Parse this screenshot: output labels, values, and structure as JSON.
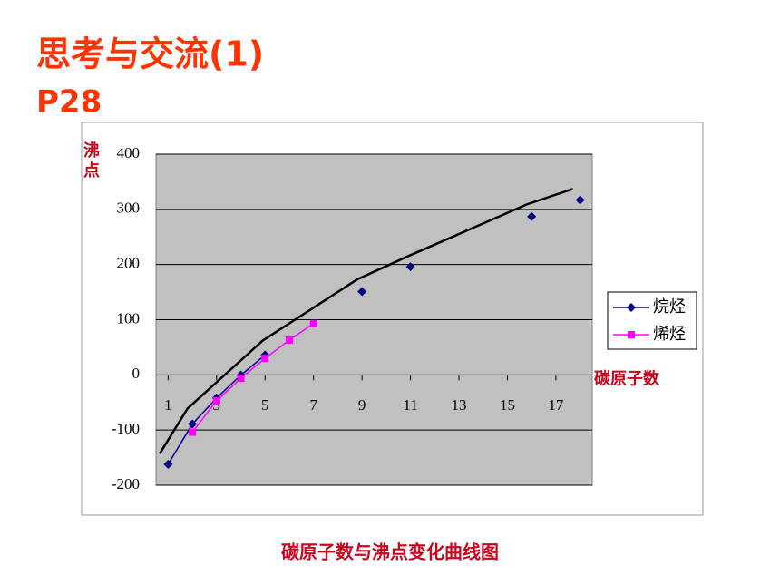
{
  "slide": {
    "title": "思考与交流(1)",
    "subtitle": "P28",
    "caption": "碳原子数与沸点变化曲线图"
  },
  "chart_data": {
    "type": "line",
    "ylabel": "沸点",
    "xlabel": "碳原子数",
    "xlim": [
      0.5,
      18.5
    ],
    "xticks": [
      1,
      3,
      5,
      7,
      9,
      11,
      13,
      15,
      17
    ],
    "ylim": [
      -200,
      400
    ],
    "yticks": [
      -200,
      -100,
      0,
      100,
      200,
      300,
      400
    ],
    "grid": true,
    "plot_background": "#c0c0c0",
    "series": [
      {
        "name": "烷烃",
        "color": "#000080",
        "marker": "diamond",
        "x": [
          1,
          2,
          3,
          4,
          5,
          6,
          7,
          8,
          9,
          10,
          11,
          12,
          13,
          14,
          15,
          16,
          17,
          18
        ],
        "values": [
          -162,
          -89,
          -42,
          -0.5,
          36,
          null,
          null,
          null,
          151,
          null,
          196,
          null,
          null,
          null,
          null,
          287,
          null,
          317
        ]
      },
      {
        "name": "烯烃",
        "color": "#ff00ff",
        "marker": "square",
        "x": [
          2,
          3,
          4,
          5,
          6,
          7
        ],
        "values": [
          -104,
          -47,
          -6.3,
          30,
          63,
          93
        ]
      },
      {
        "color": "#000000",
        "marker": "none",
        "x": [
          0.65,
          1.8,
          4.9,
          8.8,
          11,
          15.8,
          17.7
        ],
        "values": [
          -143,
          -61,
          62,
          173,
          217,
          309,
          337
        ]
      }
    ]
  }
}
